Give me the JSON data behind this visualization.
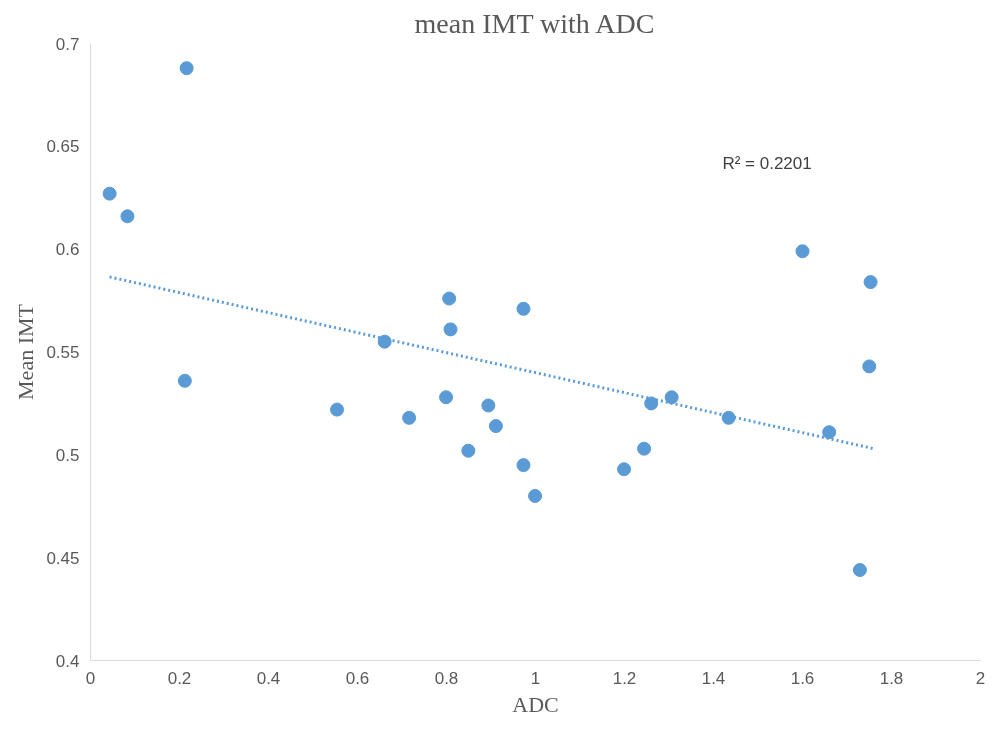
{
  "chart_data": {
    "type": "scatter",
    "title": "mean IMT with ADC",
    "xlabel": "ADC",
    "ylabel": "Mean IMT",
    "xlim": [
      0,
      2
    ],
    "xticks": [
      0,
      0.2,
      0.4,
      0.6,
      0.8,
      1,
      1.2,
      1.4,
      1.6,
      1.8,
      2
    ],
    "ylim": [
      0.4,
      0.7
    ],
    "yticks": [
      0.4,
      0.45,
      0.5,
      0.55,
      0.6,
      0.65,
      0.7
    ],
    "grid": false,
    "marker": "circle",
    "annotations": [
      "R² = 0.2201"
    ],
    "series": [
      {
        "color": "#5b9bd5",
        "x": [
          0.043,
          0.083,
          0.216,
          0.212,
          0.554,
          0.661,
          0.716,
          0.799,
          0.806,
          0.809,
          0.849,
          0.894,
          0.911,
          0.973,
          0.973,
          0.999,
          1.199,
          1.244,
          1.26,
          1.306,
          1.434,
          1.6,
          1.66,
          1.729,
          1.753,
          1.75
        ],
        "values": [
          0.627,
          0.616,
          0.688,
          0.536,
          0.522,
          0.555,
          0.518,
          0.528,
          0.576,
          0.561,
          0.502,
          0.524,
          0.514,
          0.571,
          0.495,
          0.48,
          0.493,
          0.503,
          0.525,
          0.528,
          0.518,
          0.599,
          0.511,
          0.444,
          0.584,
          0.543
        ]
      },
      {
        "type": "line",
        "marker": "none",
        "color": "#5b9bd5",
        "line_style": "dotted",
        "x": [
          0.043,
          1.76
        ],
        "values": [
          0.5865,
          0.503
        ]
      }
    ]
  }
}
